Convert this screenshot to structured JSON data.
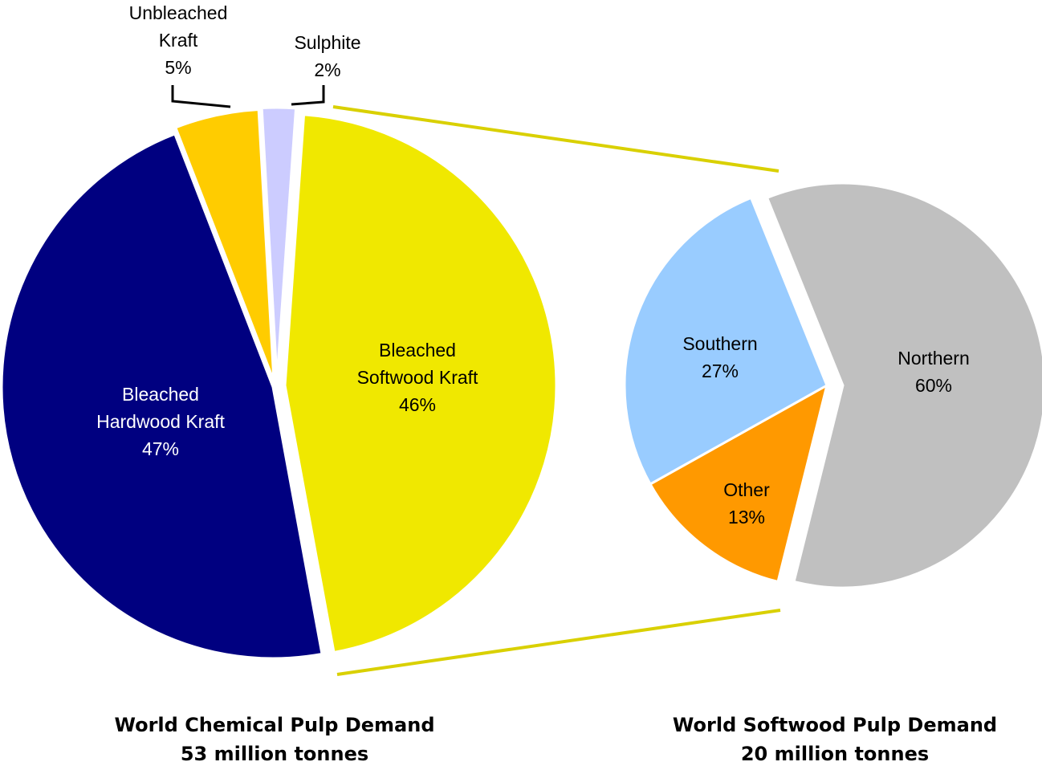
{
  "chart_data": [
    {
      "type": "pie",
      "title": "World Chemical Pulp Demand",
      "subtitle": "53 million tonnes",
      "categories": [
        "Bleached\nSoftwood Kraft",
        "Bleached\nHardwood Kraft",
        "Unbleached\nKraft",
        "Sulphite"
      ],
      "values": [
        46,
        47,
        5,
        2
      ],
      "value_labels": [
        "46%",
        "47%",
        "5%",
        "2%"
      ],
      "colors": [
        "#f0e800",
        "#000080",
        "#ffcc00",
        "#ccccff"
      ]
    },
    {
      "type": "pie",
      "title": "World Softwood Pulp Demand",
      "subtitle": "20 million tonnes",
      "categories": [
        "Northern",
        "Other",
        "Southern"
      ],
      "values": [
        60,
        13,
        27
      ],
      "value_labels": [
        "60%",
        "13%",
        "27%"
      ],
      "colors": [
        "#c0c0c0",
        "#ff9900",
        "#99ccff"
      ]
    }
  ]
}
